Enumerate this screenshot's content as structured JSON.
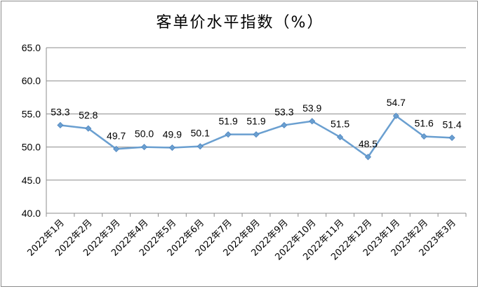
{
  "chart_data": {
    "type": "line",
    "title": "客单价水平指数（%）",
    "categories": [
      "2022年1月",
      "2022年2月",
      "2022年3月",
      "2022年4月",
      "2022年5月",
      "2022年6月",
      "2022年7月",
      "2022年8月",
      "2022年9月",
      "2022年10月",
      "2022年11月",
      "2022年12月",
      "2023年1月",
      "2023年2月",
      "2023年3月"
    ],
    "series": [
      {
        "values": [
          53.3,
          52.8,
          49.7,
          50.0,
          49.9,
          50.1,
          51.9,
          51.9,
          53.3,
          53.9,
          51.5,
          48.5,
          54.7,
          51.6,
          51.4
        ]
      }
    ],
    "data_labels": [
      "53.3",
      "52.8",
      "49.7",
      "50.0",
      "49.9",
      "50.1",
      "51.9",
      "51.9",
      "53.3",
      "53.9",
      "51.5",
      "48.5",
      "54.7",
      "51.6",
      "51.4"
    ],
    "ylim": [
      40,
      65
    ],
    "yticks": [
      "40.0",
      "45.0",
      "50.0",
      "55.0",
      "60.0",
      "65.0"
    ],
    "grid": true,
    "line_color": "#6a9fd0"
  }
}
